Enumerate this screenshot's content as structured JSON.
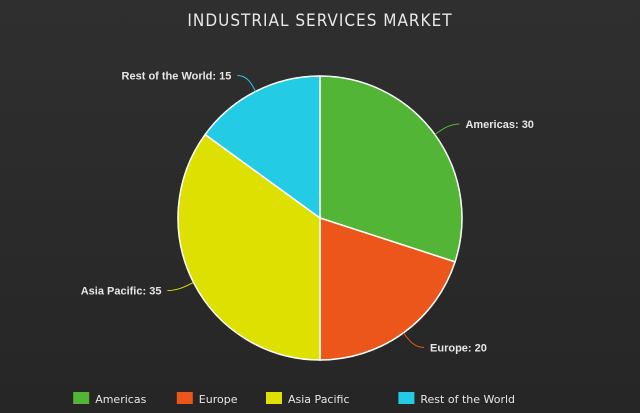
{
  "chart_data": {
    "type": "pie",
    "title": "INDUSTRIAL SERVICES MARKET",
    "categories": [
      "Americas",
      "Europe",
      "Asia Pacific",
      "Rest of the World"
    ],
    "values": [
      30,
      20,
      35,
      15
    ],
    "data_labels": [
      "Americas: 30",
      "Europe: 20",
      "Asia Pacific: 35",
      "Rest of the World: 15"
    ],
    "colors": [
      "#52b535",
      "#ec561b",
      "#dde000",
      "#24cbe5"
    ],
    "legend_position": "bottom",
    "start_angle": "12 o'clock, clockwise"
  }
}
